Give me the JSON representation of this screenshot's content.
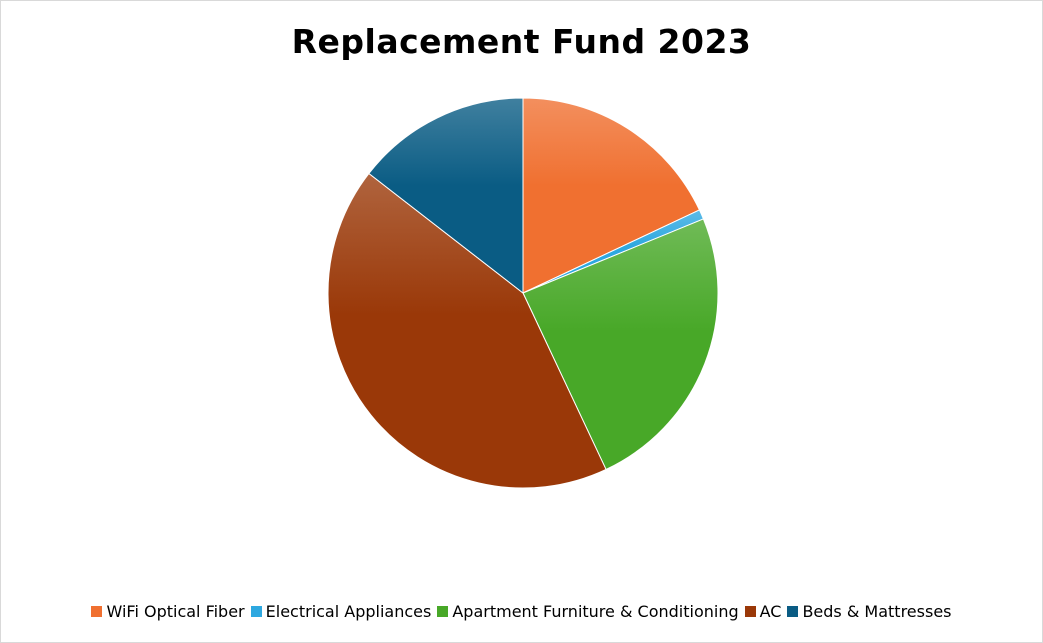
{
  "chart_data": {
    "type": "pie",
    "title": "Replacement Fund 2023",
    "series": [
      {
        "name": "WiFi Optical Fiber",
        "value": 18.0,
        "color": "#f07030"
      },
      {
        "name": "Electrical Appliances",
        "value": 0.8,
        "color": "#2ea8e0"
      },
      {
        "name": "Apartment Furniture & Conditioning",
        "value": 24.2,
        "color": "#48a828"
      },
      {
        "name": "AC",
        "value": 42.5,
        "color": "#9a3808"
      },
      {
        "name": "Beds & Mattresses",
        "value": 14.5,
        "color": "#0a5c84"
      }
    ],
    "legend_position": "bottom",
    "start_angle": "12 o'clock",
    "direction": "clockwise"
  }
}
